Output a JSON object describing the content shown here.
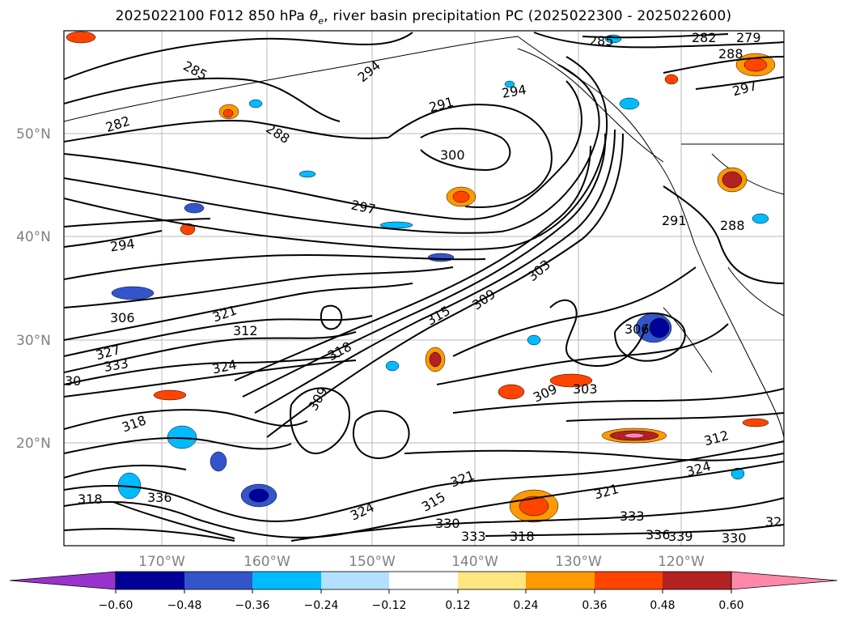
{
  "title_prefix": "2025022100 F012 850 hPa ",
  "title_symbol": "θ",
  "title_symbol_sub": "e",
  "title_suffix": ", river basin precipitation PC (2025022300 - 2025022600)",
  "lat_labels": [
    "50°N",
    "40°N",
    "30°N",
    "20°N"
  ],
  "lon_labels": [
    "170°W",
    "160°W",
    "150°W",
    "140°W",
    "130°W",
    "120°W"
  ],
  "colorbar": {
    "colors": [
      "#9933cc",
      "#000099",
      "#3355cc",
      "#00bbff",
      "#b3e0ff",
      "#ffffff",
      "#ffe680",
      "#ff9900",
      "#ff4400",
      "#b22222",
      "#ff88aa"
    ],
    "ticks": [
      "−0.60",
      "−0.48",
      "−0.36",
      "−0.24",
      "−0.12",
      "0.12",
      "0.24",
      "0.36",
      "0.48",
      "0.60"
    ]
  },
  "contour_labels": [
    {
      "text": "285"
    },
    {
      "text": "294"
    },
    {
      "text": "282"
    },
    {
      "text": "288"
    },
    {
      "text": "291"
    },
    {
      "text": "294"
    },
    {
      "text": "300"
    },
    {
      "text": "297"
    },
    {
      "text": "285"
    },
    {
      "text": "282"
    },
    {
      "text": "279"
    },
    {
      "text": "288"
    },
    {
      "text": "297"
    },
    {
      "text": "294"
    },
    {
      "text": "291"
    },
    {
      "text": "288"
    },
    {
      "text": "306"
    },
    {
      "text": "303"
    },
    {
      "text": "309"
    },
    {
      "text": "315"
    },
    {
      "text": "318"
    },
    {
      "text": "312"
    },
    {
      "text": "321"
    },
    {
      "text": "324"
    },
    {
      "text": "327"
    },
    {
      "text": "333"
    },
    {
      "text": "306"
    },
    {
      "text": "309"
    },
    {
      "text": "303"
    },
    {
      "text": "309"
    },
    {
      "text": "312"
    },
    {
      "text": "324"
    },
    {
      "text": "321"
    },
    {
      "text": "333"
    },
    {
      "text": "336"
    },
    {
      "text": "339"
    },
    {
      "text": "330"
    },
    {
      "text": "318"
    },
    {
      "text": "333"
    },
    {
      "text": "330"
    },
    {
      "text": "321"
    },
    {
      "text": "318"
    },
    {
      "text": "336"
    },
    {
      "text": "324"
    },
    {
      "text": "30"
    },
    {
      "text": "318"
    },
    {
      "text": "32"
    },
    {
      "text": "315"
    }
  ]
}
